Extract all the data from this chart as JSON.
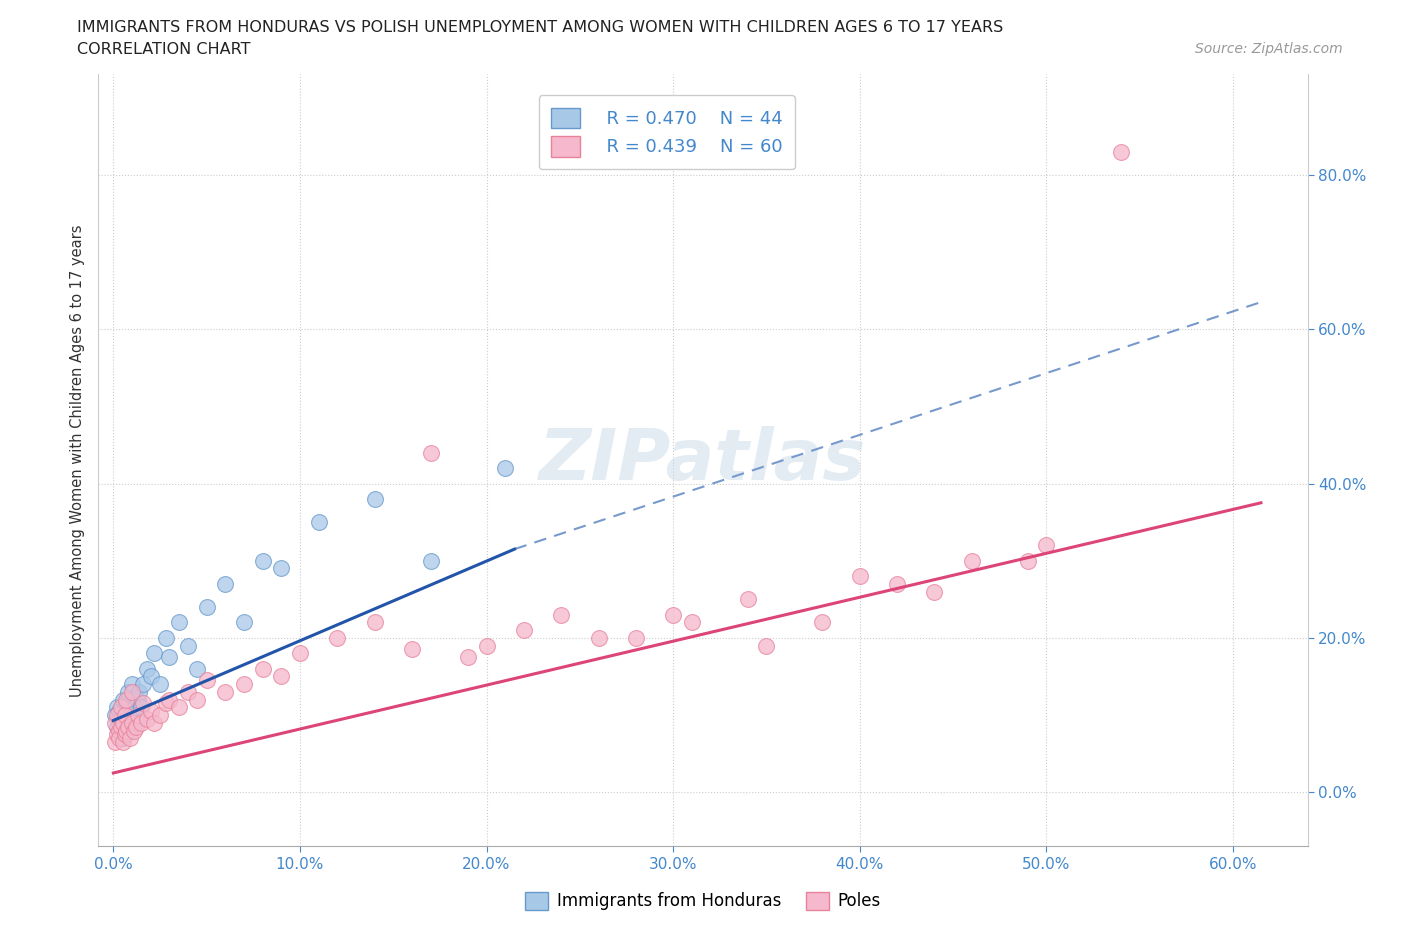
{
  "title_line1": "IMMIGRANTS FROM HONDURAS VS POLISH UNEMPLOYMENT AMONG WOMEN WITH CHILDREN AGES 6 TO 17 YEARS",
  "title_line2": "CORRELATION CHART",
  "source_text": "Source: ZipAtlas.com",
  "ylabel": "Unemployment Among Women with Children Ages 6 to 17 years",
  "x_tick_values": [
    0.0,
    0.1,
    0.2,
    0.3,
    0.4,
    0.5,
    0.6
  ],
  "y_tick_values": [
    0.0,
    0.2,
    0.4,
    0.6,
    0.8
  ],
  "xlim": [
    -0.008,
    0.64
  ],
  "ylim": [
    -0.07,
    0.93
  ],
  "legend_r1": "R = 0.470",
  "legend_n1": "N = 44",
  "legend_r2": "R = 0.439",
  "legend_n2": "N = 60",
  "color_blue_fill": "#a8c8e8",
  "color_blue_edge": "#6699cc",
  "color_pink_fill": "#f5b8cc",
  "color_pink_edge": "#e8829a",
  "color_trend_blue": "#2255aa",
  "color_trend_pink": "#dd4477",
  "color_dashed": "#7799cc",
  "watermark": "ZIPatlas",
  "Honduras_x": [
    0.001,
    0.002,
    0.002,
    0.003,
    0.003,
    0.004,
    0.004,
    0.005,
    0.005,
    0.005,
    0.006,
    0.006,
    0.007,
    0.007,
    0.008,
    0.008,
    0.009,
    0.009,
    0.01,
    0.01,
    0.011,
    0.012,
    0.013,
    0.014,
    0.015,
    0.016,
    0.018,
    0.02,
    0.022,
    0.025,
    0.028,
    0.03,
    0.035,
    0.04,
    0.045,
    0.05,
    0.06,
    0.07,
    0.08,
    0.09,
    0.11,
    0.14,
    0.17,
    0.21
  ],
  "Honduras_y": [
    0.1,
    0.085,
    0.11,
    0.09,
    0.105,
    0.08,
    0.095,
    0.07,
    0.09,
    0.12,
    0.075,
    0.1,
    0.085,
    0.115,
    0.09,
    0.13,
    0.095,
    0.08,
    0.1,
    0.14,
    0.11,
    0.09,
    0.12,
    0.13,
    0.11,
    0.14,
    0.16,
    0.15,
    0.18,
    0.14,
    0.2,
    0.175,
    0.22,
    0.19,
    0.16,
    0.24,
    0.27,
    0.22,
    0.3,
    0.29,
    0.35,
    0.38,
    0.3,
    0.42
  ],
  "Poles_x": [
    0.001,
    0.001,
    0.002,
    0.002,
    0.003,
    0.003,
    0.004,
    0.004,
    0.005,
    0.005,
    0.006,
    0.006,
    0.007,
    0.007,
    0.008,
    0.009,
    0.01,
    0.01,
    0.011,
    0.012,
    0.013,
    0.015,
    0.016,
    0.018,
    0.02,
    0.022,
    0.025,
    0.028,
    0.03,
    0.035,
    0.04,
    0.045,
    0.05,
    0.06,
    0.07,
    0.08,
    0.09,
    0.1,
    0.12,
    0.14,
    0.16,
    0.19,
    0.22,
    0.26,
    0.3,
    0.34,
    0.38,
    0.42,
    0.46,
    0.5,
    0.17,
    0.2,
    0.24,
    0.28,
    0.31,
    0.35,
    0.4,
    0.44,
    0.49,
    0.54
  ],
  "Poles_y": [
    0.065,
    0.09,
    0.075,
    0.1,
    0.08,
    0.07,
    0.085,
    0.11,
    0.065,
    0.09,
    0.075,
    0.1,
    0.08,
    0.12,
    0.085,
    0.07,
    0.09,
    0.13,
    0.08,
    0.085,
    0.1,
    0.09,
    0.115,
    0.095,
    0.105,
    0.09,
    0.1,
    0.115,
    0.12,
    0.11,
    0.13,
    0.12,
    0.145,
    0.13,
    0.14,
    0.16,
    0.15,
    0.18,
    0.2,
    0.22,
    0.185,
    0.175,
    0.21,
    0.2,
    0.23,
    0.25,
    0.22,
    0.27,
    0.3,
    0.32,
    0.44,
    0.19,
    0.23,
    0.2,
    0.22,
    0.19,
    0.28,
    0.26,
    0.3,
    0.83
  ]
}
